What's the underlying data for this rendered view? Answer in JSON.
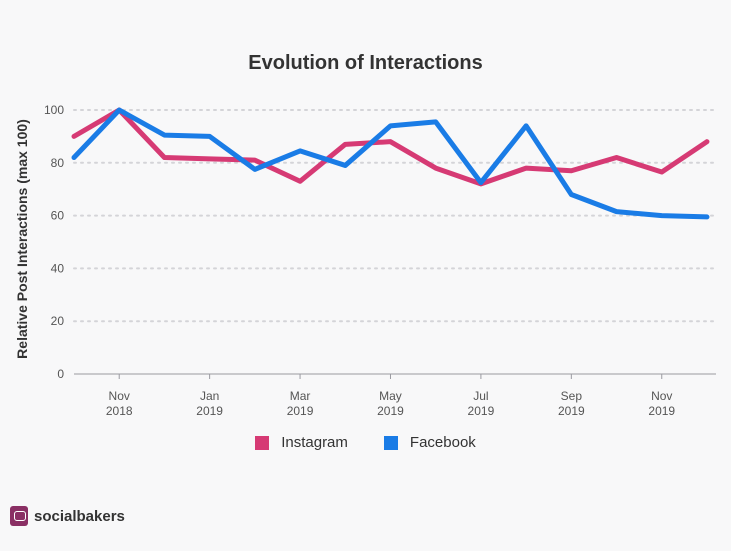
{
  "chart_data": {
    "type": "line",
    "title": "Evolution of Interactions",
    "ylabel": "Relative Post Interactions (max 100)",
    "xlabel": "",
    "ylim": [
      0,
      100
    ],
    "yticks": [
      0,
      20,
      40,
      60,
      80,
      100
    ],
    "x_ticks": [
      {
        "month": "Nov",
        "year": "2018",
        "x": 1
      },
      {
        "month": "Jan",
        "year": "2019",
        "x": 3
      },
      {
        "month": "Mar",
        "year": "2019",
        "x": 5
      },
      {
        "month": "May",
        "year": "2019",
        "x": 7
      },
      {
        "month": "Jul",
        "year": "2019",
        "x": 9
      },
      {
        "month": "Sep",
        "year": "2019",
        "x": 11
      },
      {
        "month": "Nov",
        "year": "2019",
        "x": 13
      }
    ],
    "x": [
      0,
      1,
      2,
      3,
      4,
      5,
      6,
      7,
      8,
      9,
      10,
      11,
      12,
      13,
      14
    ],
    "xlim": [
      0,
      14.2
    ],
    "grid": true,
    "legend_position": "bottom",
    "series": [
      {
        "name": "Instagram",
        "color": "#d63a74",
        "values": [
          90,
          100,
          82,
          81.5,
          81,
          73,
          87,
          88,
          78,
          72,
          78,
          77,
          82,
          76.5,
          88
        ]
      },
      {
        "name": "Facebook",
        "color": "#1a7ce6",
        "values": [
          82,
          100,
          90.5,
          90,
          77.5,
          84.5,
          79,
          94,
          95.5,
          72.5,
          94,
          68,
          61.5,
          60,
          59.5
        ]
      }
    ]
  },
  "brand": {
    "name": "socialbakers",
    "icon": "socialbakers-logo-icon"
  }
}
